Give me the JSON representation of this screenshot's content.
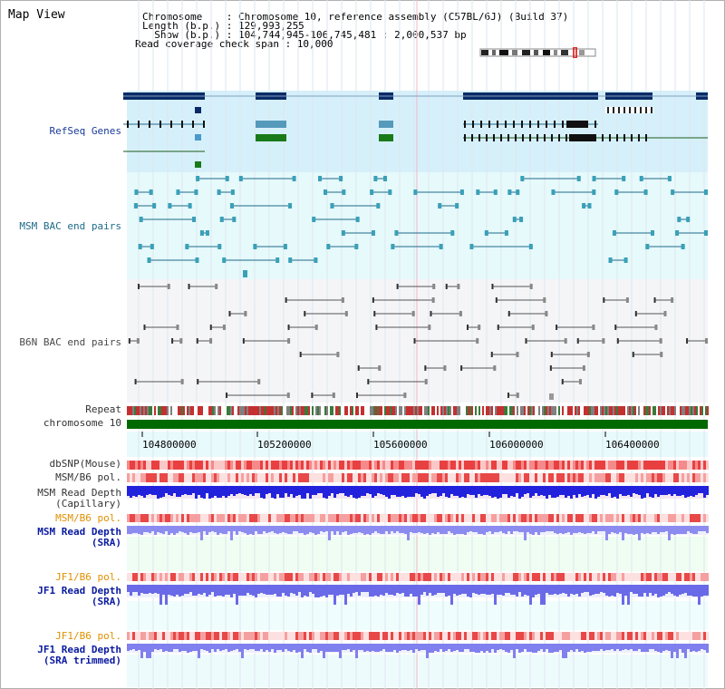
{
  "header": {
    "title": "Map View",
    "chromosome_line": "Chromosome    : Chromosome 10, reference assembly (C57BL/6J) (Build 37)",
    "length_line": "Length (b.p.) : 129,993,255",
    "show_line": "  Show (b.p.) : 104,744,945-106,745,481 : 2,000,537 bp",
    "coverage_line": "Read coverage check span : 10,000"
  },
  "tracks": {
    "refseq": "RefSeq Genes",
    "msm_bac": "MSM BAC end pairs",
    "b6n_bac": "B6N BAC end pairs",
    "repeat": "Repeat",
    "chromosome": "chromosome 10",
    "dbsnp": "dbSNP(Mouse)",
    "msm_b6_pol_1": "MSM/B6 pol.",
    "msm_depth_cap_1": "MSM Read Depth",
    "msm_depth_cap_2": "(Capillary)",
    "msm_b6_pol_2": "MSM/B6 pol.",
    "msm_depth_sra_1": "MSM Read Depth",
    "msm_depth_sra_2": "(SRA)",
    "jf1_pol_1": "JF1/B6 pol.",
    "jf1_depth_sra_1": "JF1 Read Depth",
    "jf1_depth_sra_2": "(SRA)",
    "jf1_pol_2": "JF1/B6 pol.",
    "jf1_depth_trim_1": "JF1 Read Depth",
    "jf1_depth_trim_2": "(SRA trimmed)"
  },
  "axis": {
    "ticks": [
      "104800000",
      "105200000",
      "105600000",
      "106000000",
      "106400000"
    ]
  },
  "colors": {
    "refseq_label": "#1a3a9a",
    "msm_label": "#1d6a8a",
    "b6n_label": "#4a4a4a",
    "pol_label": "#e09000",
    "depth_label": "#0a1aa0",
    "dark_label": "#333333"
  }
}
